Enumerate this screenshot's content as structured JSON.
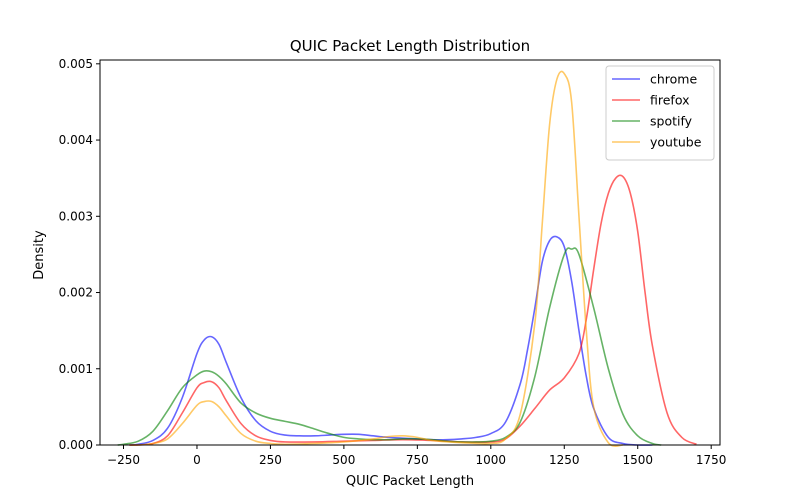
{
  "chart_data": {
    "type": "line",
    "title": "QUIC Packet Length Distribution",
    "xlabel": "QUIC Packet Length",
    "ylabel": "Density",
    "xlim": [
      -330,
      1780
    ],
    "ylim": [
      0,
      0.00505
    ],
    "xticks": [
      -250,
      0,
      250,
      500,
      750,
      1000,
      1250,
      1500,
      1750
    ],
    "xtick_labels": [
      "−250",
      "0",
      "250",
      "500",
      "750",
      "1000",
      "1250",
      "1500",
      "1750"
    ],
    "yticks": [
      0,
      0.001,
      0.002,
      0.003,
      0.004,
      0.005
    ],
    "ytick_labels": [
      "0.000",
      "0.001",
      "0.002",
      "0.003",
      "0.004",
      "0.005"
    ],
    "grid": false,
    "legend_position": "top-right",
    "series": [
      {
        "name": "chrome",
        "color": "#0000ff",
        "x": [
          -230,
          -200,
          -150,
          -100,
          -50,
          0,
          25,
          50,
          75,
          100,
          150,
          200,
          250,
          300,
          350,
          400,
          450,
          500,
          550,
          600,
          650,
          700,
          750,
          800,
          850,
          900,
          950,
          1000,
          1050,
          1100,
          1125,
          1150,
          1175,
          1200,
          1225,
          1250,
          1275,
          1300,
          1325,
          1350,
          1400,
          1450,
          1500,
          1550
        ],
        "y": [
          0.0,
          1e-05,
          6e-05,
          0.00022,
          0.00062,
          0.0012,
          0.00138,
          0.00142,
          0.00132,
          0.00108,
          0.00062,
          0.00032,
          0.00018,
          0.00013,
          0.00012,
          0.00012,
          0.00013,
          0.00014,
          0.00014,
          0.00012,
          0.0001,
          9e-05,
          8e-05,
          7e-05,
          7e-05,
          8e-05,
          0.0001,
          0.00015,
          0.0003,
          0.0008,
          0.00125,
          0.0018,
          0.0024,
          0.00268,
          0.00273,
          0.0026,
          0.00215,
          0.0015,
          0.0009,
          0.00048,
          0.0001,
          2e-05,
          0.0,
          0.0
        ]
      },
      {
        "name": "firefox",
        "color": "#ff0000",
        "x": [
          -230,
          -200,
          -150,
          -100,
          -50,
          0,
          25,
          50,
          75,
          100,
          150,
          200,
          250,
          300,
          400,
          500,
          600,
          700,
          800,
          900,
          1000,
          1050,
          1100,
          1150,
          1200,
          1250,
          1300,
          1325,
          1350,
          1375,
          1400,
          1425,
          1450,
          1475,
          1500,
          1525,
          1550,
          1600,
          1650,
          1700
        ],
        "y": [
          0.0,
          0.0,
          2e-05,
          0.00012,
          0.00042,
          0.00075,
          0.00082,
          0.00083,
          0.00075,
          0.00058,
          0.00028,
          0.00012,
          6e-05,
          4e-05,
          4e-05,
          5e-05,
          6e-05,
          7e-05,
          6e-05,
          4e-05,
          4e-05,
          8e-05,
          0.00025,
          0.00048,
          0.00072,
          0.00088,
          0.0012,
          0.00165,
          0.0023,
          0.0029,
          0.0033,
          0.0035,
          0.00352,
          0.0033,
          0.0028,
          0.002,
          0.0013,
          0.00042,
          0.0001,
          1e-05
        ]
      },
      {
        "name": "spotify",
        "color": "#008000",
        "x": [
          -270,
          -250,
          -200,
          -150,
          -100,
          -50,
          0,
          25,
          50,
          75,
          100,
          150,
          200,
          250,
          300,
          350,
          400,
          450,
          500,
          550,
          600,
          650,
          700,
          750,
          800,
          850,
          900,
          950,
          1000,
          1050,
          1100,
          1150,
          1200,
          1250,
          1275,
          1300,
          1350,
          1400,
          1450,
          1500,
          1550,
          1580
        ],
        "y": [
          0.0,
          1e-05,
          5e-05,
          0.00018,
          0.00045,
          0.00075,
          0.00092,
          0.00097,
          0.00096,
          0.0009,
          0.0008,
          0.00055,
          0.00042,
          0.00035,
          0.00031,
          0.00027,
          0.00021,
          0.00015,
          0.0001,
          8e-05,
          7e-05,
          7e-05,
          8e-05,
          8e-05,
          7e-05,
          5e-05,
          4e-05,
          4e-05,
          5e-05,
          0.0001,
          0.0003,
          0.0009,
          0.0018,
          0.0025,
          0.00257,
          0.0025,
          0.0018,
          0.001,
          0.0004,
          0.00012,
          2e-05,
          0.0
        ]
      },
      {
        "name": "youtube",
        "color": "#ffa500",
        "x": [
          -230,
          -200,
          -150,
          -100,
          -50,
          0,
          25,
          50,
          75,
          100,
          150,
          200,
          250,
          300,
          400,
          500,
          600,
          650,
          700,
          750,
          800,
          900,
          1000,
          1050,
          1100,
          1150,
          1175,
          1200,
          1225,
          1250,
          1275,
          1300,
          1325,
          1350,
          1400,
          1450
        ],
        "y": [
          0.0,
          0.0,
          2e-05,
          8e-05,
          0.00028,
          0.00052,
          0.00057,
          0.00057,
          0.0005,
          0.00038,
          0.00015,
          5e-05,
          2e-05,
          1e-05,
          2e-05,
          4e-05,
          8e-05,
          0.00011,
          0.00012,
          0.0001,
          6e-05,
          3e-05,
          2e-05,
          8e-05,
          0.0004,
          0.0016,
          0.0029,
          0.0042,
          0.0048,
          0.00487,
          0.0045,
          0.003,
          0.0015,
          0.0005,
          3e-05,
          0.0
        ]
      }
    ]
  }
}
